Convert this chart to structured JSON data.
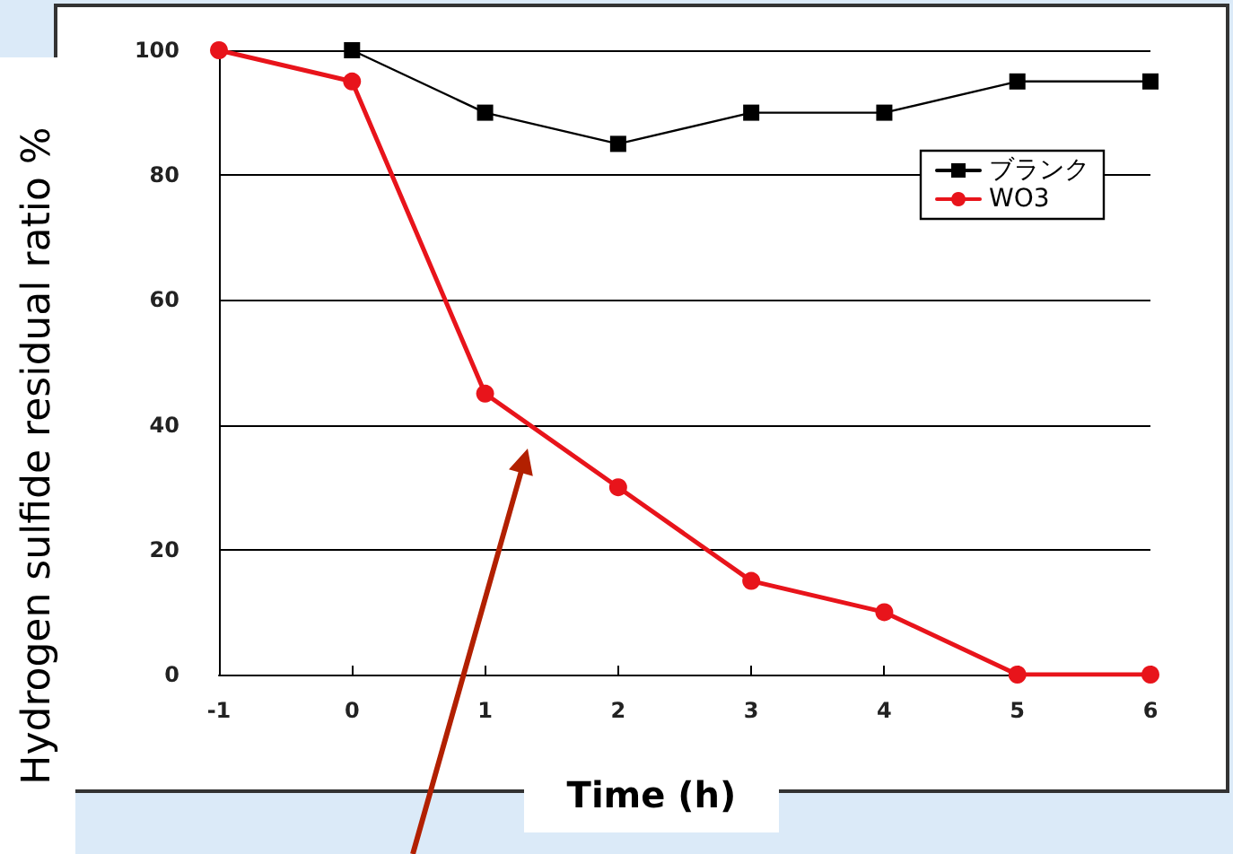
{
  "chart_data": {
    "type": "line",
    "xlabel": "Time (h)",
    "ylabel": "Hydrogen sulfide residual ratio %",
    "xlim": [
      -1,
      6
    ],
    "xticks": [
      -1,
      0,
      1,
      2,
      3,
      4,
      5,
      6
    ],
    "ylim": [
      0,
      100
    ],
    "yticks": [
      0,
      20,
      40,
      60,
      80,
      100
    ],
    "grid": "y",
    "legend": "top right",
    "series": [
      {
        "name": "ブランク",
        "color": "#000000",
        "marker": "square",
        "x": [
          0,
          1,
          2,
          3,
          4,
          5,
          6
        ],
        "values": [
          100,
          90,
          85,
          90,
          90,
          95,
          95
        ]
      },
      {
        "name": "WO3",
        "color": "#e8141b",
        "marker": "circle",
        "x": [
          -1,
          0,
          1,
          2,
          3,
          4,
          5,
          6
        ],
        "values": [
          100,
          95,
          45,
          30,
          15,
          10,
          0,
          0
        ]
      }
    ]
  }
}
